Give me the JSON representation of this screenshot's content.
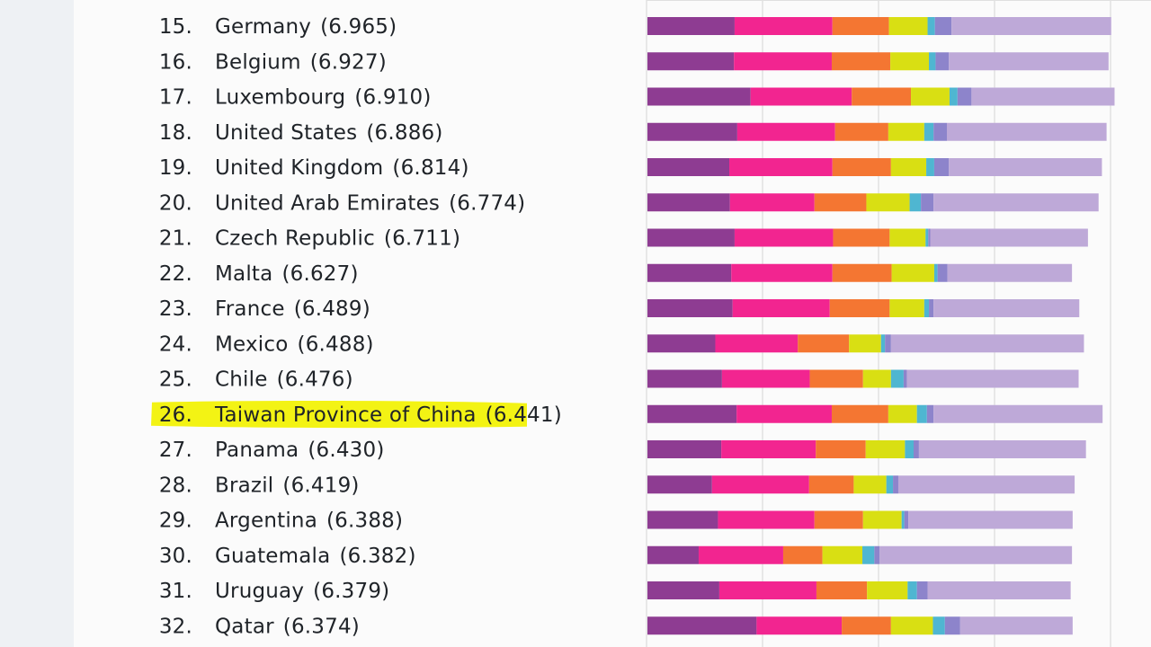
{
  "chart_data": {
    "type": "bar",
    "orientation": "horizontal-stacked",
    "title": "",
    "xlabel": "",
    "ylabel": "",
    "grid": true,
    "colors": {
      "series": [
        "#8e3c92",
        "#f22590",
        "#f47632",
        "#d9df13",
        "#4fb6d1",
        "#8d84cb",
        "#bea9d8"
      ]
    },
    "series": [
      {
        "values": [
          1.31,
          1.3,
          1.55,
          1.35,
          1.23,
          1.24,
          1.31,
          1.26,
          1.28,
          1.02,
          1.12,
          1.34,
          1.11,
          0.97,
          1.06,
          0.77,
          1.08,
          1.64
        ]
      },
      {
        "values": [
          1.47,
          1.47,
          1.52,
          1.47,
          1.55,
          1.27,
          1.48,
          1.52,
          1.46,
          1.24,
          1.32,
          1.43,
          1.42,
          1.46,
          1.45,
          1.27,
          1.46,
          1.28
        ]
      },
      {
        "values": [
          0.85,
          0.88,
          0.89,
          0.8,
          0.88,
          0.78,
          0.85,
          0.89,
          0.9,
          0.77,
          0.8,
          0.85,
          0.75,
          0.67,
          0.73,
          0.59,
          0.76,
          0.74
        ]
      },
      {
        "values": [
          0.58,
          0.58,
          0.58,
          0.54,
          0.53,
          0.65,
          0.54,
          0.64,
          0.52,
          0.48,
          0.42,
          0.43,
          0.59,
          0.49,
          0.58,
          0.6,
          0.61,
          0.63
        ]
      },
      {
        "values": [
          0.11,
          0.1,
          0.12,
          0.14,
          0.12,
          0.17,
          0.04,
          0.05,
          0.07,
          0.06,
          0.19,
          0.15,
          0.13,
          0.1,
          0.04,
          0.18,
          0.14,
          0.18
        ]
      },
      {
        "values": [
          0.25,
          0.2,
          0.21,
          0.2,
          0.22,
          0.19,
          0.03,
          0.15,
          0.07,
          0.09,
          0.05,
          0.1,
          0.08,
          0.08,
          0.06,
          0.08,
          0.16,
          0.23
        ]
      },
      {
        "values": [
          2.4,
          2.4,
          2.15,
          2.4,
          2.3,
          2.48,
          2.37,
          1.87,
          2.19,
          2.9,
          2.58,
          2.54,
          2.51,
          2.65,
          2.47,
          2.89,
          2.15,
          1.69
        ]
      }
    ],
    "rows": [
      {
        "rank": "15.",
        "country": "Germany",
        "score": "(6.965)"
      },
      {
        "rank": "16.",
        "country": "Belgium",
        "score": "(6.927)"
      },
      {
        "rank": "17.",
        "country": "Luxembourg",
        "score": "(6.910)"
      },
      {
        "rank": "18.",
        "country": "United States",
        "score": "(6.886)"
      },
      {
        "rank": "19.",
        "country": "United Kingdom",
        "score": "(6.814)"
      },
      {
        "rank": "20.",
        "country": "United Arab Emirates",
        "score": "(6.774)"
      },
      {
        "rank": "21.",
        "country": "Czech Republic",
        "score": "(6.711)"
      },
      {
        "rank": "22.",
        "country": "Malta",
        "score": "(6.627)"
      },
      {
        "rank": "23.",
        "country": "France",
        "score": "(6.489)"
      },
      {
        "rank": "24.",
        "country": "Mexico",
        "score": "(6.488)"
      },
      {
        "rank": "25.",
        "country": "Chile",
        "score": "(6.476)"
      },
      {
        "rank": "26.",
        "country": "Taiwan Province of China",
        "score": "(6.441)",
        "highlighted": true
      },
      {
        "rank": "27.",
        "country": "Panama",
        "score": "(6.430)"
      },
      {
        "rank": "28.",
        "country": "Brazil",
        "score": "(6.419)"
      },
      {
        "rank": "29.",
        "country": "Argentina",
        "score": "(6.388)"
      },
      {
        "rank": "30.",
        "country": "Guatemala",
        "score": "(6.382)"
      },
      {
        "rank": "31.",
        "country": "Uruguay",
        "score": "(6.379)"
      },
      {
        "rank": "32.",
        "country": "Qatar",
        "score": "(6.374)"
      }
    ]
  }
}
